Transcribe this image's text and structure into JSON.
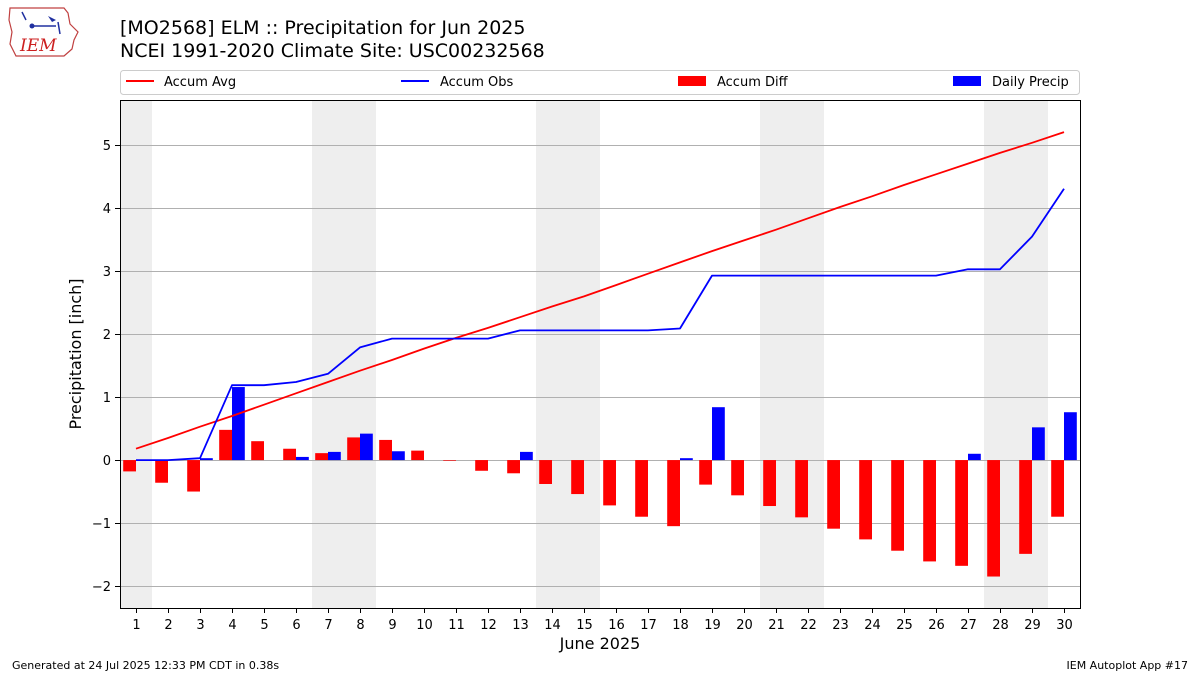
{
  "header": {
    "title_line1": "[MO2568] ELM :: Precipitation for Jun 2025",
    "title_line2": "NCEI 1991-2020 Climate Site: USC00232568",
    "logo_text": "IEM"
  },
  "footer": {
    "left": "Generated at 24 Jul 2025 12:33 PM CDT in 0.38s",
    "right": "IEM Autoplot App #17"
  },
  "colors": {
    "accum_avg": "#ff0000",
    "accum_obs": "#0000ff",
    "accum_diff": "#ff0000",
    "daily_precip": "#0000ff",
    "weekend_shade": "#eeeeee",
    "grid": "#b0b0b0"
  },
  "chart_data": {
    "type": "bar",
    "xlabel": "June 2025",
    "ylabel": "Precipitation [inch]",
    "ylim": [
      -2.35,
      5.72
    ],
    "yticks": [
      -2,
      -1,
      0,
      1,
      2,
      3,
      4,
      5
    ],
    "ytick_labels": [
      "−2",
      "−1",
      "0",
      "1",
      "2",
      "3",
      "4",
      "5"
    ],
    "grid": "horizontal",
    "legend_placement": "top",
    "weekend_days": [
      1,
      7,
      8,
      14,
      15,
      21,
      22,
      28,
      29
    ],
    "categories": [
      1,
      2,
      3,
      4,
      5,
      6,
      7,
      8,
      9,
      10,
      11,
      12,
      13,
      14,
      15,
      16,
      17,
      18,
      19,
      20,
      21,
      22,
      23,
      24,
      25,
      26,
      27,
      28,
      29,
      30
    ],
    "series": [
      {
        "name": "Accum Avg",
        "kind": "line",
        "values": [
          0.18,
          0.35,
          0.53,
          0.7,
          0.88,
          1.06,
          1.24,
          1.42,
          1.59,
          1.77,
          1.94,
          2.1,
          2.27,
          2.44,
          2.6,
          2.78,
          2.96,
          3.14,
          3.32,
          3.49,
          3.66,
          3.84,
          4.02,
          4.19,
          4.37,
          4.54,
          4.71,
          4.88,
          5.04,
          5.21
        ]
      },
      {
        "name": "Accum Obs",
        "kind": "line",
        "values": [
          0.0,
          0.0,
          0.03,
          1.19,
          1.19,
          1.24,
          1.37,
          1.79,
          1.93,
          1.93,
          1.93,
          1.93,
          2.06,
          2.06,
          2.06,
          2.06,
          2.06,
          2.09,
          2.93,
          2.93,
          2.93,
          2.93,
          2.93,
          2.93,
          2.93,
          2.93,
          3.03,
          3.03,
          3.55,
          4.31
        ]
      },
      {
        "name": "Accum Diff",
        "kind": "bar",
        "values": [
          -0.18,
          -0.36,
          -0.5,
          0.48,
          0.3,
          0.18,
          0.11,
          0.36,
          0.32,
          0.15,
          -0.01,
          -0.17,
          -0.21,
          -0.38,
          -0.54,
          -0.72,
          -0.9,
          -1.05,
          -0.39,
          -0.56,
          -0.73,
          -0.91,
          -1.09,
          -1.26,
          -1.44,
          -1.61,
          -1.68,
          -1.85,
          -1.49,
          -0.9
        ]
      },
      {
        "name": "Daily Precip",
        "kind": "bar",
        "values": [
          0.0,
          0.0,
          0.03,
          1.16,
          0.0,
          0.05,
          0.13,
          0.42,
          0.14,
          0.0,
          0.0,
          0.0,
          0.13,
          0.0,
          0.0,
          0.0,
          0.0,
          0.03,
          0.84,
          0.0,
          0.0,
          0.0,
          0.0,
          0.0,
          0.0,
          0.0,
          0.1,
          0.0,
          0.52,
          0.76
        ]
      }
    ]
  }
}
